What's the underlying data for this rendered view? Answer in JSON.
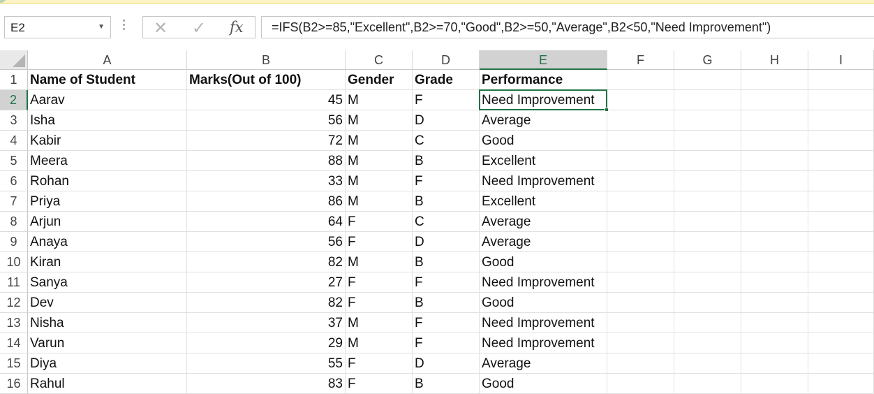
{
  "name_box": {
    "value": "E2",
    "dropdown_icon": "chevron-down-icon"
  },
  "formula_bar": {
    "cancel_icon": "✕",
    "enter_icon": "✓",
    "fx_label": "fx",
    "formula": "=IFS(B2>=85,\"Excellent\",B2>=70,\"Good\",B2>=50,\"Average\",B2<50,\"Need Improvement\")"
  },
  "columns": [
    "A",
    "B",
    "C",
    "D",
    "E",
    "F",
    "G",
    "H",
    "I"
  ],
  "selected_column": "E",
  "selected_row": 2,
  "rows": [
    {
      "num": "1",
      "cells": [
        "Name of Student",
        "Marks(Out of 100)",
        "Gender",
        "Grade",
        "Performance"
      ]
    },
    {
      "num": "2",
      "cells": [
        "Aarav",
        "45",
        "M",
        "F",
        "Need Improvement"
      ]
    },
    {
      "num": "3",
      "cells": [
        "Isha",
        "56",
        "M",
        "D",
        "Average"
      ]
    },
    {
      "num": "4",
      "cells": [
        "Kabir",
        "72",
        "M",
        "C",
        "Good"
      ]
    },
    {
      "num": "5",
      "cells": [
        "Meera",
        "88",
        "M",
        "B",
        "Excellent"
      ]
    },
    {
      "num": "6",
      "cells": [
        "Rohan",
        "33",
        "M",
        "F",
        "Need Improvement"
      ]
    },
    {
      "num": "7",
      "cells": [
        "Priya",
        "86",
        "M",
        "B",
        "Excellent"
      ]
    },
    {
      "num": "8",
      "cells": [
        "Arjun",
        "64",
        "F",
        "C",
        "Average"
      ]
    },
    {
      "num": "9",
      "cells": [
        "Anaya",
        "56",
        "F",
        "D",
        "Average"
      ]
    },
    {
      "num": "10",
      "cells": [
        "Kiran",
        "82",
        "M",
        "B",
        "Good"
      ]
    },
    {
      "num": "11",
      "cells": [
        "Sanya",
        "27",
        "F",
        "F",
        "Need Improvement"
      ]
    },
    {
      "num": "12",
      "cells": [
        "Dev",
        "82",
        "F",
        "B",
        "Good"
      ]
    },
    {
      "num": "13",
      "cells": [
        "Nisha",
        "37",
        "M",
        "F",
        "Need Improvement"
      ]
    },
    {
      "num": "14",
      "cells": [
        "Varun",
        "29",
        "M",
        "F",
        "Need Improvement"
      ]
    },
    {
      "num": "15",
      "cells": [
        "Diya",
        "55",
        "F",
        "D",
        "Average"
      ]
    },
    {
      "num": "16",
      "cells": [
        "Rahul",
        "83",
        "F",
        "B",
        "Good"
      ]
    }
  ],
  "colors": {
    "accent": "#217346",
    "header_selected_bg": "#d2d2d2"
  }
}
